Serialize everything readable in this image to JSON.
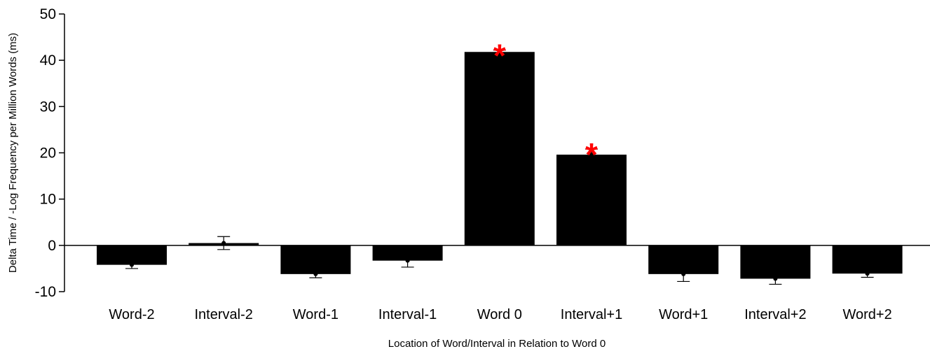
{
  "chart_data": {
    "type": "bar",
    "title": "",
    "xlabel": "Location of Word/Interval in Relation to Word 0",
    "ylabel": "Delta Time / -Log Frequency per Million Words (ms)",
    "ylim": [
      -10,
      50
    ],
    "yticks": [
      -10,
      0,
      10,
      20,
      30,
      40,
      50
    ],
    "grid": false,
    "bar_color": "#000000",
    "significance_color": "#ff0000",
    "significance_marker": "*",
    "categories": [
      "Word-2",
      "Interval-2",
      "Word-1",
      "Interval-1",
      "Word 0",
      "Interval+1",
      "Word+1",
      "Interval+2",
      "Word+2"
    ],
    "values": [
      -4.2,
      0.5,
      -6.2,
      -3.3,
      41.8,
      19.6,
      -6.2,
      -7.2,
      -6.1
    ],
    "error": [
      0.8,
      1.4,
      0.8,
      1.4,
      0.4,
      1.2,
      1.6,
      1.2,
      0.8
    ],
    "significant": [
      false,
      false,
      false,
      false,
      true,
      true,
      false,
      false,
      false
    ]
  }
}
